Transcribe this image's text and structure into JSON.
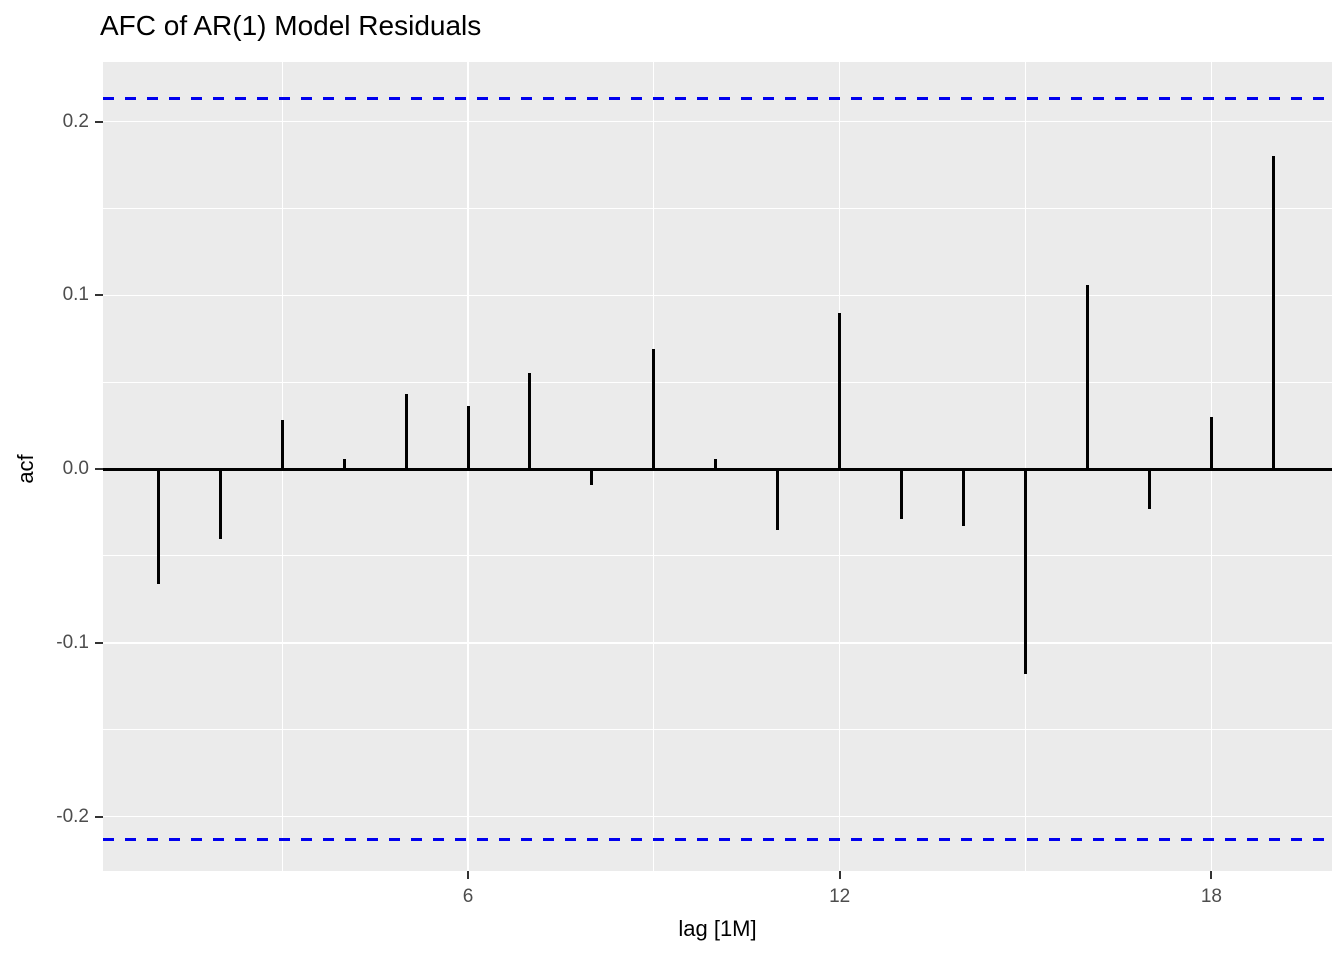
{
  "title": "AFC of AR(1) Model Residuals",
  "chart_data": {
    "type": "bar",
    "subtype": "acf-lollipop",
    "title": "AFC of AR(1) Model Residuals",
    "xlabel": "lag [1M]",
    "ylabel": "acf",
    "x": [
      1,
      2,
      3,
      4,
      5,
      6,
      7,
      8,
      9,
      10,
      11,
      12,
      13,
      14,
      15,
      16,
      17,
      18,
      19
    ],
    "values": [
      -0.066,
      -0.04,
      0.028,
      0.006,
      0.043,
      0.036,
      0.055,
      -0.009,
      0.069,
      0.006,
      -0.035,
      0.09,
      -0.029,
      -0.033,
      -0.118,
      0.106,
      -0.023,
      0.03,
      0.18
    ],
    "ci_upper": 0.2135,
    "ci_lower": -0.2135,
    "x_ticks": [
      {
        "v": 6,
        "label": "6"
      },
      {
        "v": 12,
        "label": "12"
      },
      {
        "v": 18,
        "label": "18"
      }
    ],
    "y_ticks": [
      {
        "v": 0.2,
        "label": "0.2"
      },
      {
        "v": 0.1,
        "label": "0.1"
      },
      {
        "v": 0.0,
        "label": "0.0"
      },
      {
        "v": -0.1,
        "label": "-0.1"
      },
      {
        "v": -0.2,
        "label": "-0.2"
      }
    ],
    "x_minor": [
      3,
      9,
      15
    ],
    "y_minor": [
      0.15,
      0.05,
      -0.05,
      -0.15
    ],
    "xlim": [
      0.1,
      19.9
    ],
    "ylim": [
      -0.2348,
      0.2348
    ],
    "grid": true,
    "legend_position": "none",
    "colors": {
      "panel_bg": "#EBEBEB",
      "grid": "#FFFFFF",
      "bar": "#000000",
      "zero_line": "#000000",
      "ci_line": "#0000EE",
      "tick_label": "#4D4D4D",
      "tick_mark": "#333333",
      "title": "#000000"
    }
  }
}
